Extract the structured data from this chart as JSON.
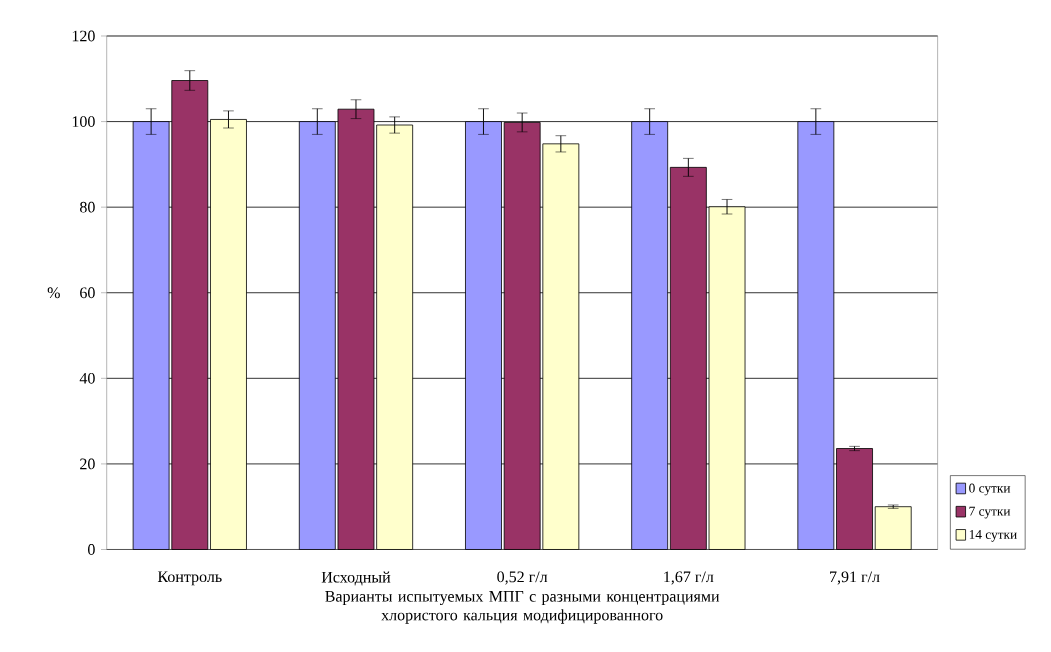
{
  "chart_data": {
    "type": "bar",
    "xlabel": "Варианты испытуемых МПГ с разными концентрациями хлористого кальция модифицированного",
    "ylabel": "%",
    "categories": [
      "Контроль",
      "Исходный",
      "0,52 г/л",
      "1,67 г/л",
      "7,91 г/л"
    ],
    "series": [
      {
        "name": "0 сутки",
        "color": "#9999ff",
        "values": [
          100,
          100,
          100,
          100,
          100
        ],
        "errors": [
          3,
          3,
          3,
          3,
          3
        ]
      },
      {
        "name": "7 сутки",
        "color": "#993366",
        "values": [
          109.6,
          102.9,
          99.8,
          89.3,
          23.6
        ],
        "errors": [
          2.3,
          2.2,
          2.2,
          2.1,
          0.5
        ]
      },
      {
        "name": "14 сутки",
        "color": "#ffffcc",
        "values": [
          100.5,
          99.2,
          94.8,
          80.1,
          10
        ],
        "errors": [
          2,
          1.9,
          1.9,
          1.7,
          0.4
        ]
      }
    ],
    "ylim": [
      0,
      120
    ],
    "yticks": [
      0,
      20,
      40,
      60,
      80,
      100,
      120
    ],
    "grid": "y",
    "legend": "bottom right"
  }
}
